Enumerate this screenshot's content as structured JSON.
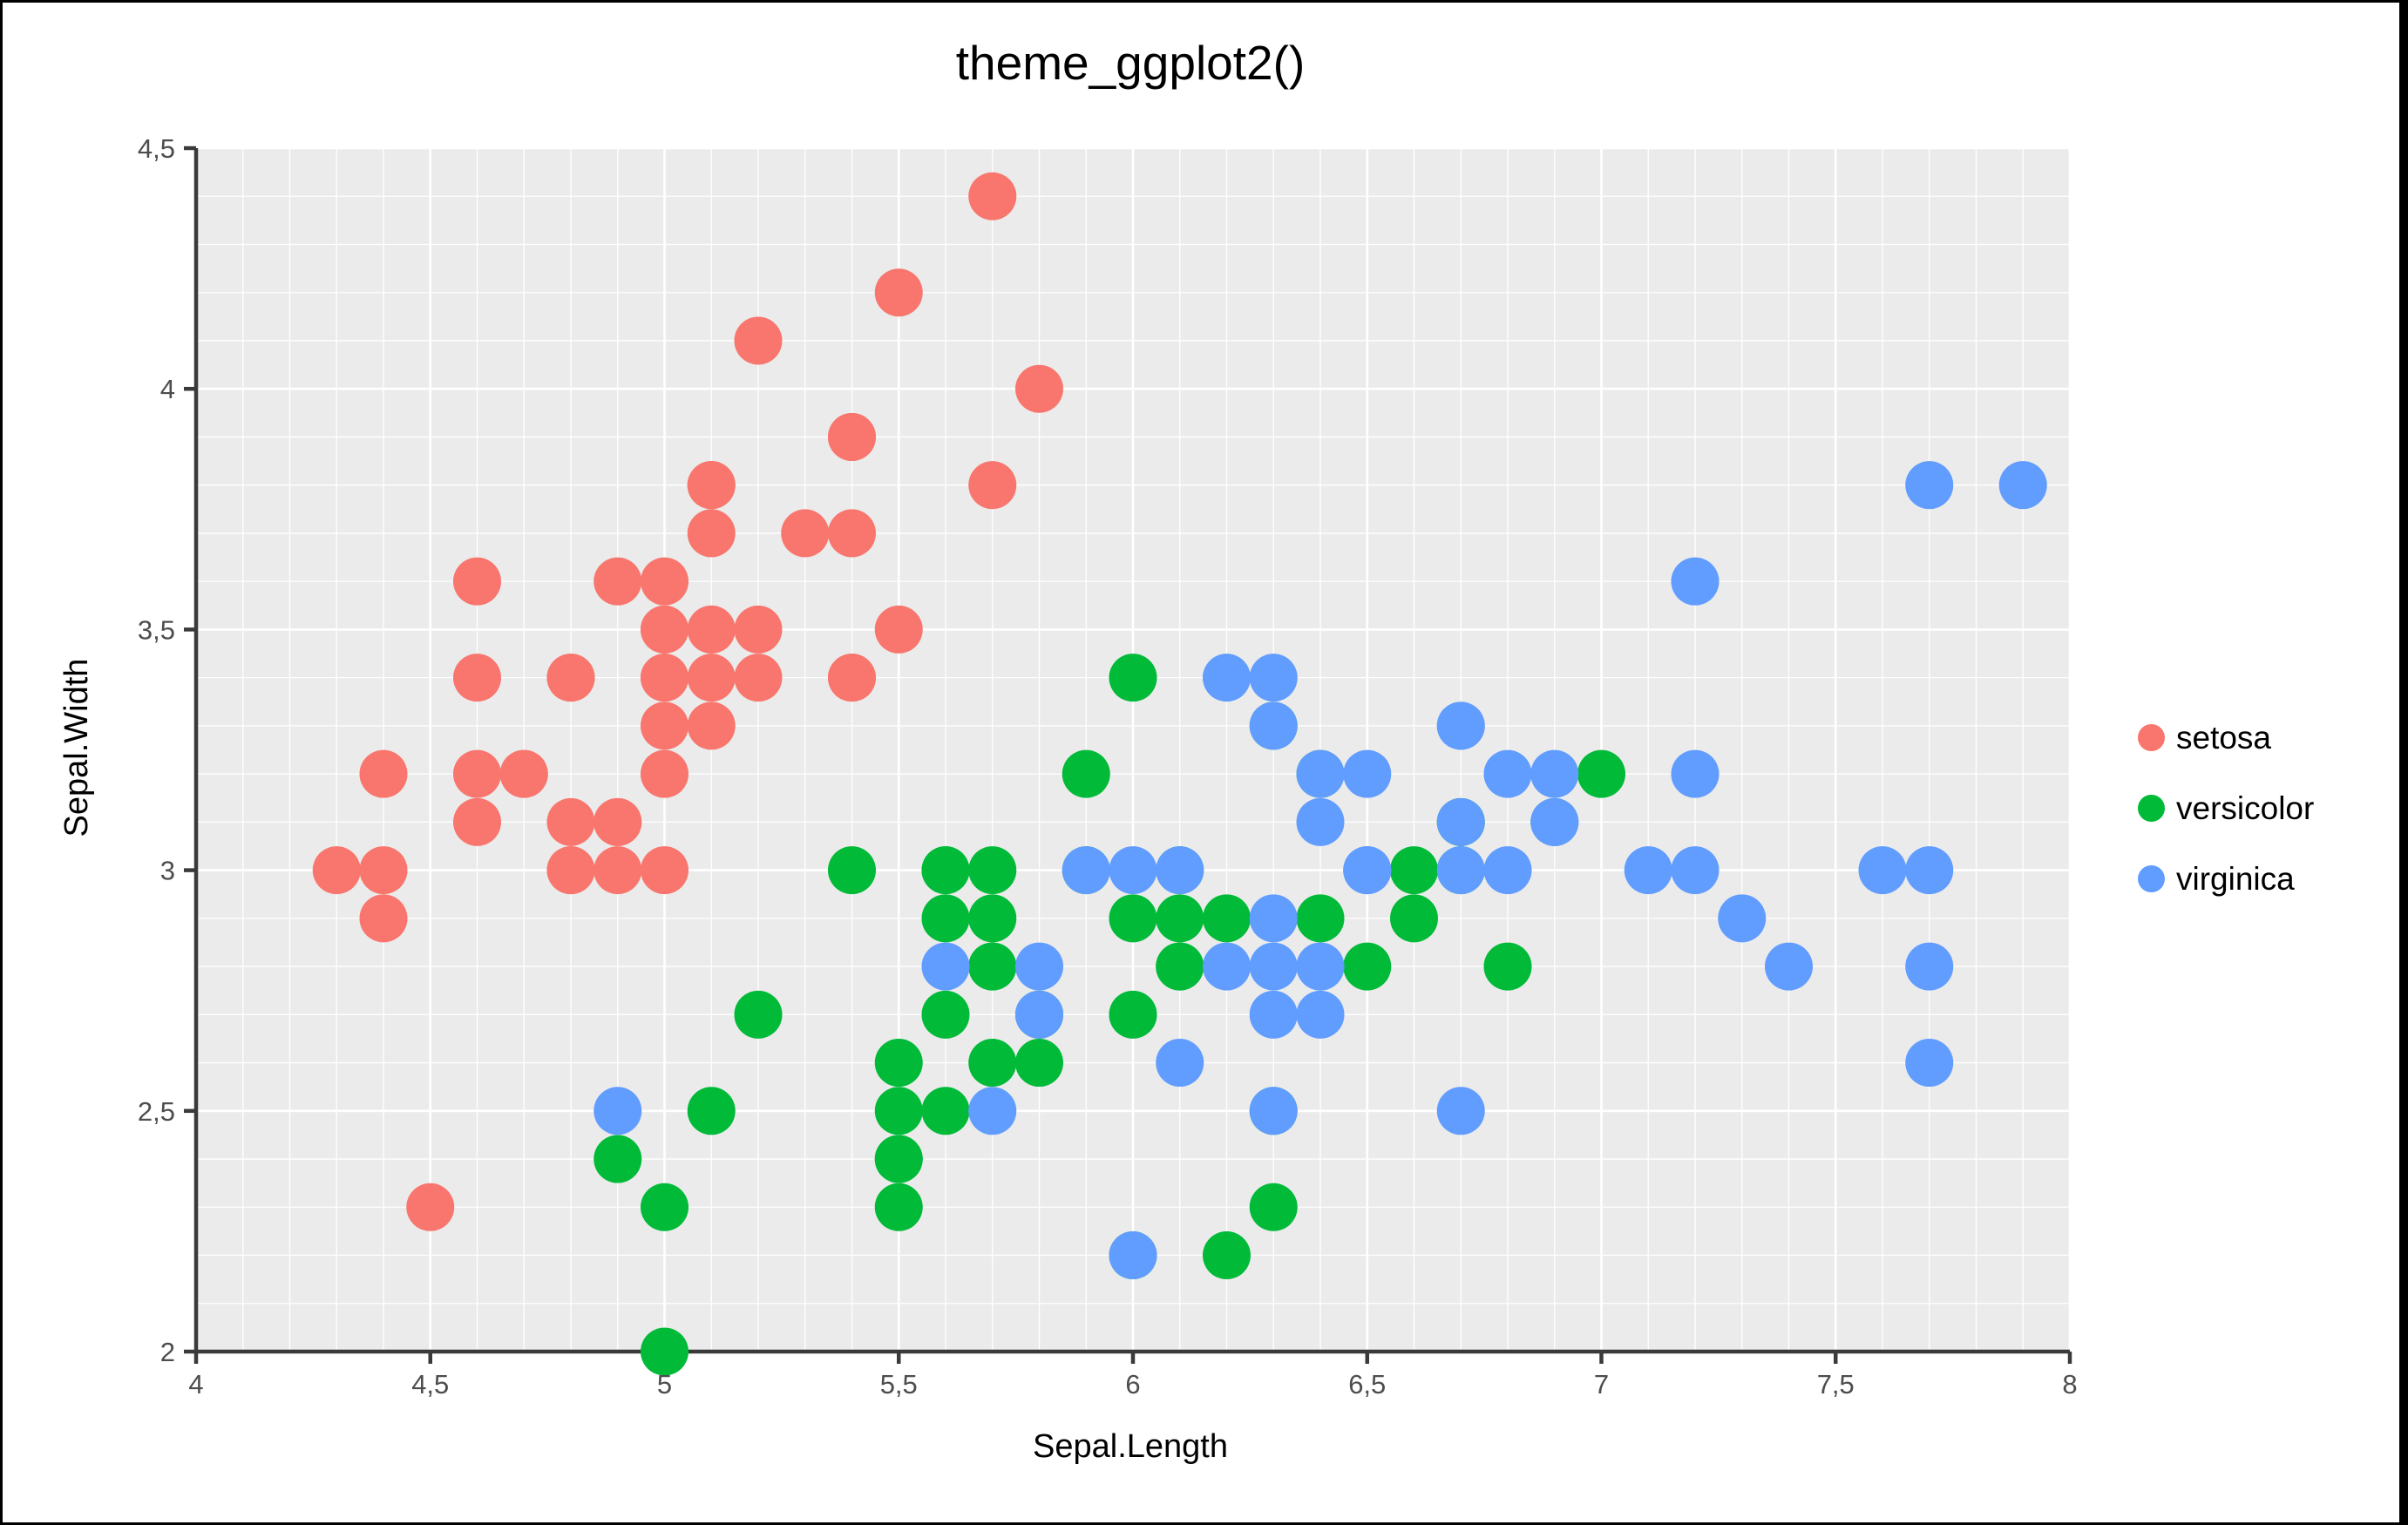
{
  "chart_data": {
    "type": "scatter",
    "title": "theme_ggplot2()",
    "xlabel": "Sepal.Length",
    "ylabel": "Sepal.Width",
    "xlim": [
      4,
      8
    ],
    "ylim": [
      2,
      4.5
    ],
    "x_ticks": {
      "values": [
        4,
        4.5,
        5,
        5.5,
        6,
        6.5,
        7,
        7.5,
        8
      ],
      "labels": [
        "4",
        "4,5",
        "5",
        "5,5",
        "6",
        "6,5",
        "7",
        "7,5",
        "8"
      ]
    },
    "y_ticks": {
      "values": [
        2,
        2.5,
        3,
        3.5,
        4,
        4.5
      ],
      "labels": [
        "2",
        "2,5",
        "3",
        "3,5",
        "4",
        "4,5"
      ]
    },
    "minor_grid_step": 0.1,
    "grid": true,
    "legend_position": "right",
    "point_radius_px": 27.5,
    "theme": {
      "panel_bg": "#EBEBEB",
      "grid_color": "#FFFFFF",
      "spine_color": "#3A3A3A",
      "tick_label_color": "#4D4D4D",
      "text_color": "#000000"
    },
    "series": [
      {
        "name": "setosa",
        "color": "#F8766D",
        "points": [
          [
            5.1,
            3.5
          ],
          [
            4.9,
            3.0
          ],
          [
            4.7,
            3.2
          ],
          [
            4.6,
            3.1
          ],
          [
            5.0,
            3.6
          ],
          [
            5.4,
            3.9
          ],
          [
            4.6,
            3.4
          ],
          [
            5.0,
            3.4
          ],
          [
            4.4,
            2.9
          ],
          [
            4.9,
            3.1
          ],
          [
            5.4,
            3.7
          ],
          [
            4.8,
            3.4
          ],
          [
            4.8,
            3.0
          ],
          [
            4.3,
            3.0
          ],
          [
            5.8,
            4.0
          ],
          [
            5.7,
            4.4
          ],
          [
            5.4,
            3.9
          ],
          [
            5.1,
            3.5
          ],
          [
            5.7,
            3.8
          ],
          [
            5.1,
            3.8
          ],
          [
            5.4,
            3.4
          ],
          [
            5.1,
            3.7
          ],
          [
            4.6,
            3.6
          ],
          [
            5.1,
            3.3
          ],
          [
            4.8,
            3.4
          ],
          [
            5.0,
            3.0
          ],
          [
            5.0,
            3.4
          ],
          [
            5.2,
            3.5
          ],
          [
            5.2,
            3.4
          ],
          [
            4.7,
            3.2
          ],
          [
            4.8,
            3.1
          ],
          [
            5.4,
            3.4
          ],
          [
            5.2,
            4.1
          ],
          [
            5.5,
            4.2
          ],
          [
            4.9,
            3.1
          ],
          [
            5.0,
            3.2
          ],
          [
            5.5,
            3.5
          ],
          [
            4.9,
            3.6
          ],
          [
            4.4,
            3.0
          ],
          [
            5.1,
            3.4
          ],
          [
            5.0,
            3.5
          ],
          [
            4.5,
            2.3
          ],
          [
            4.4,
            3.2
          ],
          [
            5.0,
            3.5
          ],
          [
            5.1,
            3.8
          ],
          [
            4.8,
            3.0
          ],
          [
            5.1,
            3.8
          ],
          [
            4.6,
            3.2
          ],
          [
            5.3,
            3.7
          ],
          [
            5.0,
            3.3
          ]
        ]
      },
      {
        "name": "versicolor",
        "color": "#00BA38",
        "points": [
          [
            7.0,
            3.2
          ],
          [
            6.4,
            3.2
          ],
          [
            6.9,
            3.1
          ],
          [
            5.5,
            2.3
          ],
          [
            6.5,
            2.8
          ],
          [
            5.7,
            2.8
          ],
          [
            6.3,
            3.3
          ],
          [
            4.9,
            2.4
          ],
          [
            6.6,
            2.9
          ],
          [
            5.2,
            2.7
          ],
          [
            5.0,
            2.0
          ],
          [
            5.9,
            3.0
          ],
          [
            6.0,
            2.2
          ],
          [
            6.1,
            2.9
          ],
          [
            5.6,
            2.9
          ],
          [
            6.7,
            3.1
          ],
          [
            5.6,
            3.0
          ],
          [
            5.8,
            2.7
          ],
          [
            6.2,
            2.2
          ],
          [
            5.6,
            2.5
          ],
          [
            5.9,
            3.2
          ],
          [
            6.1,
            2.8
          ],
          [
            6.3,
            2.5
          ],
          [
            6.1,
            2.8
          ],
          [
            6.4,
            2.9
          ],
          [
            6.6,
            3.0
          ],
          [
            6.8,
            2.8
          ],
          [
            6.7,
            3.0
          ],
          [
            6.0,
            2.9
          ],
          [
            5.7,
            2.6
          ],
          [
            5.5,
            2.4
          ],
          [
            5.5,
            2.4
          ],
          [
            5.8,
            2.7
          ],
          [
            6.0,
            2.7
          ],
          [
            5.4,
            3.0
          ],
          [
            6.0,
            3.4
          ],
          [
            6.7,
            3.1
          ],
          [
            6.3,
            2.3
          ],
          [
            5.6,
            3.0
          ],
          [
            5.5,
            2.5
          ],
          [
            5.5,
            2.6
          ],
          [
            6.1,
            3.0
          ],
          [
            5.8,
            2.6
          ],
          [
            5.0,
            2.3
          ],
          [
            5.6,
            2.7
          ],
          [
            5.7,
            3.0
          ],
          [
            5.7,
            2.9
          ],
          [
            6.2,
            2.9
          ],
          [
            5.1,
            2.5
          ],
          [
            5.7,
            2.8
          ]
        ]
      },
      {
        "name": "virginica",
        "color": "#619CFF",
        "points": [
          [
            6.3,
            3.3
          ],
          [
            5.8,
            2.7
          ],
          [
            7.1,
            3.0
          ],
          [
            6.3,
            2.9
          ],
          [
            6.5,
            3.0
          ],
          [
            7.6,
            3.0
          ],
          [
            4.9,
            2.5
          ],
          [
            7.3,
            2.9
          ],
          [
            6.7,
            2.5
          ],
          [
            7.2,
            3.6
          ],
          [
            6.5,
            3.2
          ],
          [
            6.4,
            2.7
          ],
          [
            6.8,
            3.0
          ],
          [
            5.7,
            2.5
          ],
          [
            5.8,
            2.8
          ],
          [
            6.4,
            3.2
          ],
          [
            6.5,
            3.0
          ],
          [
            7.7,
            3.8
          ],
          [
            7.7,
            2.6
          ],
          [
            6.0,
            2.2
          ],
          [
            6.9,
            3.2
          ],
          [
            5.6,
            2.8
          ],
          [
            7.7,
            2.8
          ],
          [
            6.3,
            2.7
          ],
          [
            6.7,
            3.3
          ],
          [
            7.2,
            3.2
          ],
          [
            6.2,
            2.8
          ],
          [
            6.1,
            3.0
          ],
          [
            6.4,
            2.8
          ],
          [
            7.2,
            3.0
          ],
          [
            7.4,
            2.8
          ],
          [
            7.9,
            3.8
          ],
          [
            6.4,
            2.8
          ],
          [
            6.3,
            2.8
          ],
          [
            6.1,
            2.6
          ],
          [
            7.7,
            3.0
          ],
          [
            6.3,
            3.4
          ],
          [
            6.4,
            3.1
          ],
          [
            6.0,
            3.0
          ],
          [
            6.9,
            3.1
          ],
          [
            6.7,
            3.1
          ],
          [
            6.9,
            3.1
          ],
          [
            5.8,
            2.7
          ],
          [
            6.8,
            3.2
          ],
          [
            6.7,
            3.3
          ],
          [
            6.7,
            3.0
          ],
          [
            6.3,
            2.5
          ],
          [
            6.5,
            3.0
          ],
          [
            6.2,
            3.4
          ],
          [
            5.9,
            3.0
          ]
        ]
      }
    ]
  }
}
